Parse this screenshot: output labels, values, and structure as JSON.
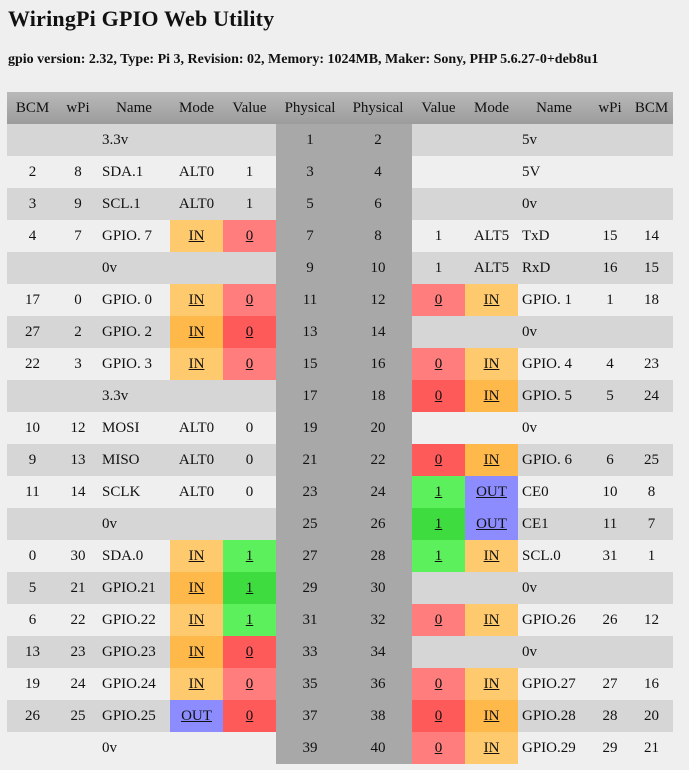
{
  "title": "WiringPi GPIO Web Utility",
  "info": "gpio version: 2.32, Type: Pi 3, Revision: 02, Memory: 1024MB, Maker: Sony, PHP 5.6.27-0+deb8u1",
  "headers": [
    "BCM",
    "wPi",
    "Name",
    "Mode",
    "Value",
    "Physical",
    "Physical",
    "Value",
    "Mode",
    "Name",
    "wPi",
    "BCM"
  ],
  "rows": [
    {
      "l": {
        "bcm": "",
        "wpi": "",
        "name": "3.3v",
        "mode": "",
        "value": ""
      },
      "p1": "1",
      "p2": "2",
      "r": {
        "value": "",
        "mode": "",
        "name": "5v",
        "wpi": "",
        "bcm": ""
      }
    },
    {
      "l": {
        "bcm": "2",
        "wpi": "8",
        "name": "SDA.1",
        "mode": "ALT0",
        "value": "1"
      },
      "p1": "3",
      "p2": "4",
      "r": {
        "value": "",
        "mode": "",
        "name": "5V",
        "wpi": "",
        "bcm": ""
      }
    },
    {
      "l": {
        "bcm": "3",
        "wpi": "9",
        "name": "SCL.1",
        "mode": "ALT0",
        "value": "1"
      },
      "p1": "5",
      "p2": "6",
      "r": {
        "value": "",
        "mode": "",
        "name": "0v",
        "wpi": "",
        "bcm": ""
      }
    },
    {
      "l": {
        "bcm": "4",
        "wpi": "7",
        "name": "GPIO. 7",
        "mode": "IN",
        "value": "0"
      },
      "p1": "7",
      "p2": "8",
      "r": {
        "value": "1",
        "mode": "ALT5",
        "name": "TxD",
        "wpi": "15",
        "bcm": "14"
      }
    },
    {
      "l": {
        "bcm": "",
        "wpi": "",
        "name": "0v",
        "mode": "",
        "value": ""
      },
      "p1": "9",
      "p2": "10",
      "r": {
        "value": "1",
        "mode": "ALT5",
        "name": "RxD",
        "wpi": "16",
        "bcm": "15"
      }
    },
    {
      "l": {
        "bcm": "17",
        "wpi": "0",
        "name": "GPIO. 0",
        "mode": "IN",
        "value": "0"
      },
      "p1": "11",
      "p2": "12",
      "r": {
        "value": "0",
        "mode": "IN",
        "name": "GPIO. 1",
        "wpi": "1",
        "bcm": "18"
      }
    },
    {
      "l": {
        "bcm": "27",
        "wpi": "2",
        "name": "GPIO. 2",
        "mode": "IN",
        "value": "0"
      },
      "p1": "13",
      "p2": "14",
      "r": {
        "value": "",
        "mode": "",
        "name": "0v",
        "wpi": "",
        "bcm": ""
      }
    },
    {
      "l": {
        "bcm": "22",
        "wpi": "3",
        "name": "GPIO. 3",
        "mode": "IN",
        "value": "0"
      },
      "p1": "15",
      "p2": "16",
      "r": {
        "value": "0",
        "mode": "IN",
        "name": "GPIO. 4",
        "wpi": "4",
        "bcm": "23"
      }
    },
    {
      "l": {
        "bcm": "",
        "wpi": "",
        "name": "3.3v",
        "mode": "",
        "value": ""
      },
      "p1": "17",
      "p2": "18",
      "r": {
        "value": "0",
        "mode": "IN",
        "name": "GPIO. 5",
        "wpi": "5",
        "bcm": "24"
      }
    },
    {
      "l": {
        "bcm": "10",
        "wpi": "12",
        "name": "MOSI",
        "mode": "ALT0",
        "value": "0"
      },
      "p1": "19",
      "p2": "20",
      "r": {
        "value": "",
        "mode": "",
        "name": "0v",
        "wpi": "",
        "bcm": ""
      }
    },
    {
      "l": {
        "bcm": "9",
        "wpi": "13",
        "name": "MISO",
        "mode": "ALT0",
        "value": "0"
      },
      "p1": "21",
      "p2": "22",
      "r": {
        "value": "0",
        "mode": "IN",
        "name": "GPIO. 6",
        "wpi": "6",
        "bcm": "25"
      }
    },
    {
      "l": {
        "bcm": "11",
        "wpi": "14",
        "name": "SCLK",
        "mode": "ALT0",
        "value": "0"
      },
      "p1": "23",
      "p2": "24",
      "r": {
        "value": "1",
        "mode": "OUT",
        "name": "CE0",
        "wpi": "10",
        "bcm": "8"
      }
    },
    {
      "l": {
        "bcm": "",
        "wpi": "",
        "name": "0v",
        "mode": "",
        "value": ""
      },
      "p1": "25",
      "p2": "26",
      "r": {
        "value": "1",
        "mode": "OUT",
        "name": "CE1",
        "wpi": "11",
        "bcm": "7"
      }
    },
    {
      "l": {
        "bcm": "0",
        "wpi": "30",
        "name": "SDA.0",
        "mode": "IN",
        "value": "1"
      },
      "p1": "27",
      "p2": "28",
      "r": {
        "value": "1",
        "mode": "IN",
        "name": "SCL.0",
        "wpi": "31",
        "bcm": "1"
      }
    },
    {
      "l": {
        "bcm": "5",
        "wpi": "21",
        "name": "GPIO.21",
        "mode": "IN",
        "value": "1"
      },
      "p1": "29",
      "p2": "30",
      "r": {
        "value": "",
        "mode": "",
        "name": "0v",
        "wpi": "",
        "bcm": ""
      }
    },
    {
      "l": {
        "bcm": "6",
        "wpi": "22",
        "name": "GPIO.22",
        "mode": "IN",
        "value": "1"
      },
      "p1": "31",
      "p2": "32",
      "r": {
        "value": "0",
        "mode": "IN",
        "name": "GPIO.26",
        "wpi": "26",
        "bcm": "12"
      }
    },
    {
      "l": {
        "bcm": "13",
        "wpi": "23",
        "name": "GPIO.23",
        "mode": "IN",
        "value": "0"
      },
      "p1": "33",
      "p2": "34",
      "r": {
        "value": "",
        "mode": "",
        "name": "0v",
        "wpi": "",
        "bcm": ""
      }
    },
    {
      "l": {
        "bcm": "19",
        "wpi": "24",
        "name": "GPIO.24",
        "mode": "IN",
        "value": "0"
      },
      "p1": "35",
      "p2": "36",
      "r": {
        "value": "0",
        "mode": "IN",
        "name": "GPIO.27",
        "wpi": "27",
        "bcm": "16"
      }
    },
    {
      "l": {
        "bcm": "26",
        "wpi": "25",
        "name": "GPIO.25",
        "mode": "OUT",
        "value": "0"
      },
      "p1": "37",
      "p2": "38",
      "r": {
        "value": "0",
        "mode": "IN",
        "name": "GPIO.28",
        "wpi": "28",
        "bcm": "20"
      }
    },
    {
      "l": {
        "bcm": "",
        "wpi": "",
        "name": "0v",
        "mode": "",
        "value": ""
      },
      "p1": "39",
      "p2": "40",
      "r": {
        "value": "0",
        "mode": "IN",
        "name": "GPIO.29",
        "wpi": "29",
        "bcm": "21"
      }
    }
  ],
  "colors": {
    "mode_in": "#ffca6e",
    "mode_out": "#8c8cff",
    "value_low": "#ff7d7d",
    "value_high": "#5cf05c",
    "physical": "#a8a8a8"
  }
}
